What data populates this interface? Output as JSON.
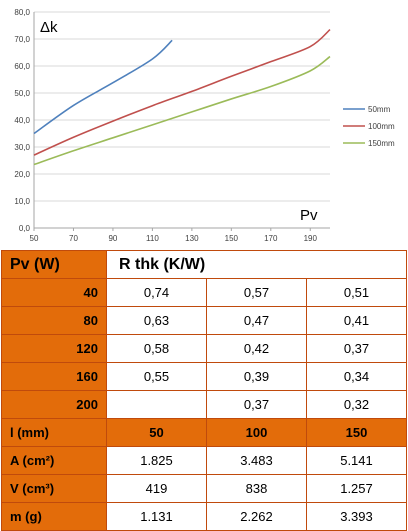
{
  "chart_data": {
    "type": "line",
    "xlabel": "Pv",
    "ylabel": "Δk",
    "xlim": [
      50,
      200
    ],
    "ylim": [
      0,
      80
    ],
    "x_ticks": [
      "50",
      "70",
      "90",
      "110",
      "130",
      "150",
      "170",
      "190"
    ],
    "y_ticks": [
      "0,0",
      "10,0",
      "20,0",
      "30,0",
      "40,0",
      "50,0",
      "60,0",
      "70,0",
      "80,0"
    ],
    "grid": "horizontal",
    "legend_position": "right",
    "series": [
      {
        "name": "50mm",
        "color": "#4f81bd",
        "x": [
          50,
          70,
          90,
          110,
          120
        ],
        "y": [
          35,
          45.4,
          53.8,
          62.6,
          69.5
        ]
      },
      {
        "name": "100mm",
        "color": "#c0504d",
        "x": [
          50,
          70,
          90,
          110,
          130,
          150,
          170,
          190,
          200
        ],
        "y": [
          27,
          33.6,
          39.6,
          45.3,
          50.6,
          56.2,
          61.6,
          67.2,
          73.5
        ]
      },
      {
        "name": "150mm",
        "color": "#9bbb59",
        "x": [
          50,
          70,
          90,
          110,
          130,
          150,
          170,
          190,
          200
        ],
        "y": [
          23.5,
          28.6,
          33.4,
          38.2,
          43,
          47.8,
          52.4,
          58.2,
          63.5
        ]
      }
    ]
  },
  "table": {
    "pv_header": "Pv (W)",
    "rthk_header": "R thk (K/W)",
    "rows": [
      {
        "pv": "40",
        "v50": "0,74",
        "v100": "0,57",
        "v150": "0,51"
      },
      {
        "pv": "80",
        "v50": "0,63",
        "v100": "0,47",
        "v150": "0,41"
      },
      {
        "pv": "120",
        "v50": "0,58",
        "v100": "0,42",
        "v150": "0,37"
      },
      {
        "pv": "160",
        "v50": "0,55",
        "v100": "0,39",
        "v150": "0,34"
      },
      {
        "pv": "200",
        "v50": "",
        "v100": "0,37",
        "v150": "0,32"
      }
    ],
    "l_row": {
      "label": "l (mm)",
      "v50": "50",
      "v100": "100",
      "v150": "150"
    },
    "a_row": {
      "label": "A (cm²)",
      "v50": "1.825",
      "v100": "3.483",
      "v150": "5.141"
    },
    "v_row": {
      "label": "V (cm³)",
      "v50": "419",
      "v100": "838",
      "v150": "1.257"
    },
    "m_row": {
      "label": "m (g)",
      "v50": "1.131",
      "v100": "2.262",
      "v150": "3.393"
    }
  },
  "colors": {
    "orange": "#e36c0a",
    "border": "#c04a0c"
  }
}
